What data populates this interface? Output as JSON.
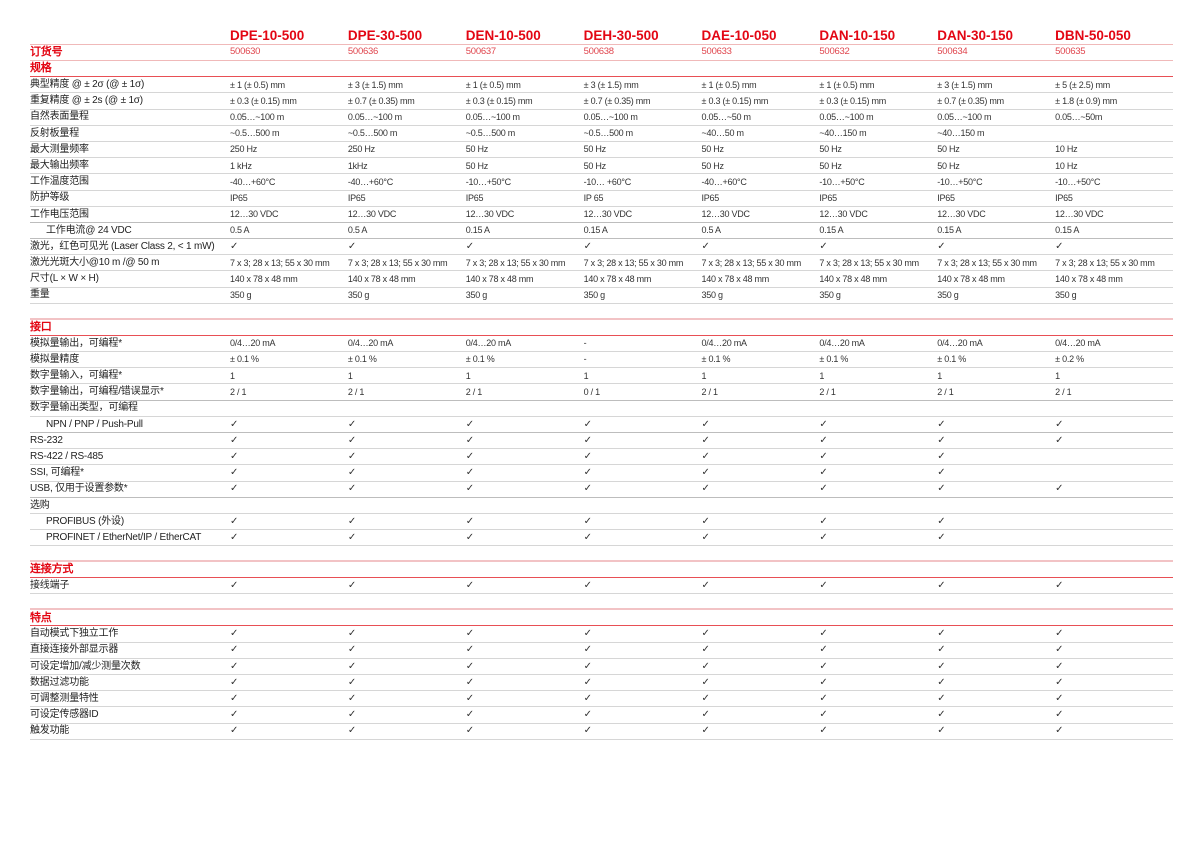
{
  "products": [
    "DPE-10-500",
    "DPE-30-500",
    "DEN-10-500",
    "DEH-30-500",
    "DAE-10-050",
    "DAN-10-150",
    "DAN-30-150",
    "DBN-50-050"
  ],
  "order_label": "订货号",
  "order_numbers": [
    "500630",
    "500636",
    "500637",
    "500638",
    "500633",
    "500632",
    "500634",
    "500635"
  ],
  "accent_color": "#e30613",
  "sections": [
    {
      "title": "规格",
      "rows": [
        {
          "label": "典型精度 @ ± 2σ (@ ± 1σ)",
          "values": [
            "± 1 (± 0.5) mm",
            "± 3 (± 1.5) mm",
            "± 1 (± 0.5) mm",
            "± 3 (± 1.5) mm",
            "± 1 (± 0.5) mm",
            "± 1 (± 0.5) mm",
            "± 3 (± 1.5) mm",
            "± 5 (± 2.5) mm"
          ]
        },
        {
          "label": "重复精度 @ ± 2s (@ ± 1σ)",
          "values": [
            "± 0.3 (± 0.15) mm",
            "± 0.7 (± 0.35) mm",
            "± 0.3 (± 0.15) mm",
            "± 0.7 (± 0.35) mm",
            "± 0.3 (± 0.15) mm",
            "± 0.3 (± 0.15) mm",
            "± 0.7 (± 0.35) mm",
            "± 1.8 (± 0.9) mm"
          ]
        },
        {
          "label": "自然表面量程",
          "values": [
            "0.05…~100 m",
            "0.05…~100 m",
            "0.05…~100 m",
            "0.05…~100 m",
            "0.05…~50 m",
            "0.05…~100 m",
            "0.05…~100 m",
            "0.05…~50m"
          ]
        },
        {
          "label": "反射板量程",
          "values": [
            " ~0.5…500 m",
            " ~0.5…500 m",
            " ~0.5…500 m",
            " ~0.5…500 m",
            "~40…50 m",
            "~40…150 m",
            "~40…150 m",
            ""
          ]
        },
        {
          "label": "最大测量频率",
          "values": [
            "250 Hz",
            "250 Hz",
            "50 Hz",
            "50 Hz",
            "50 Hz",
            "50 Hz",
            "50 Hz",
            "10 Hz"
          ]
        },
        {
          "label": "最大输出频率",
          "values": [
            "1 kHz",
            "1kHz",
            "50 Hz",
            "50 Hz",
            "50 Hz",
            "50 Hz",
            "50 Hz",
            "10 Hz"
          ]
        },
        {
          "label": "工作温度范围",
          "values": [
            "-40…+60°C",
            "-40…+60°C",
            "-10…+50°C",
            "-10… +60°C",
            "-40…+60°C",
            "-10…+50°C",
            "-10…+50°C",
            "-10…+50°C"
          ]
        },
        {
          "label": "防护等级",
          "values": [
            "IP65",
            "IP65",
            "IP65",
            "IP 65",
            "IP65",
            "IP65",
            "IP65",
            "IP65"
          ]
        },
        {
          "label": "工作电压范围",
          "thick": true,
          "values": [
            "12…30 VDC",
            "12…30 VDC",
            "12…30 VDC",
            "12…30 VDC",
            "12…30 VDC",
            "12…30 VDC",
            "12…30 VDC",
            "12…30 VDC"
          ]
        },
        {
          "label": "工作电流@ 24 VDC",
          "indent": true,
          "thick": true,
          "values": [
            "0.5 A",
            "0.5 A",
            "0.15 A",
            "0.15 A",
            "0.5 A",
            "0.15 A",
            "0.15 A",
            "0.15 A"
          ]
        },
        {
          "label": "激光，红色可见光 (Laser Class 2, < 1 mW)",
          "values": [
            "✓",
            "✓",
            "✓",
            "✓",
            "✓",
            "✓",
            "✓",
            "✓"
          ]
        },
        {
          "label": "激光光斑大小@10 m /@ 50 m",
          "values": [
            "7 x 3; 28 x 13; 55 x 30 mm",
            "7 x 3; 28 x 13; 55 x 30 mm",
            "7 x 3; 28 x 13; 55 x 30 mm",
            "7 x 3; 28 x 13; 55 x 30 mm",
            "7 x 3; 28 x 13; 55 x 30 mm",
            "7 x 3; 28 x 13; 55 x 30 mm",
            "7 x 3; 28 x 13; 55 x 30 mm",
            "7 x 3; 28 x 13; 55 x 30 mm"
          ]
        },
        {
          "label": "尺寸(L × W × H)",
          "values": [
            "140 x 78 x 48 mm",
            "140 x 78 x 48 mm",
            "140 x 78 x 48 mm",
            "140 x 78 x 48 mm",
            "140 x 78 x 48 mm",
            "140 x 78 x 48 mm",
            "140 x 78 x 48 mm",
            "140 x 78 x 48 mm"
          ]
        },
        {
          "label": "重量",
          "values": [
            "350 g",
            "350 g",
            "350 g",
            "350 g",
            "350 g",
            "350 g",
            "350 g",
            "350 g"
          ]
        }
      ]
    },
    {
      "title": "接口",
      "rows": [
        {
          "label": "模拟量输出，可编程*",
          "values": [
            "0/4…20 mA",
            "0/4…20 mA",
            "0/4…20 mA",
            "-",
            "0/4…20 mA",
            "0/4…20 mA",
            "0/4…20 mA",
            "0/4…20 mA"
          ]
        },
        {
          "label": "模拟量精度",
          "values": [
            "± 0.1 %",
            "± 0.1 %",
            "± 0.1 %",
            "-",
            "± 0.1 %",
            "± 0.1 %",
            "± 0.1 %",
            "± 0.2 %"
          ]
        },
        {
          "label": "数字量输入，可编程*",
          "values": [
            "1",
            "1",
            "1",
            "1",
            "1",
            "1",
            "1",
            "1"
          ]
        },
        {
          "label": "数字量输出，可编程/错误显示*",
          "thick": true,
          "values": [
            "2 / 1",
            "2 / 1",
            "2 / 1",
            "0 / 1",
            "2 / 1",
            "2 / 1",
            "2 / 1",
            "2 / 1"
          ]
        },
        {
          "label": "数字量输出类型，可编程",
          "values": [
            "",
            "",
            "",
            "",
            "",
            "",
            "",
            ""
          ]
        },
        {
          "label": "NPN / PNP / Push-Pull",
          "indent": true,
          "thick": true,
          "values": [
            "✓",
            "✓",
            "✓",
            "✓",
            "✓",
            "✓",
            "✓",
            "✓"
          ]
        },
        {
          "label": "RS-232",
          "values": [
            "✓",
            "✓",
            "✓",
            "✓",
            "✓",
            "✓",
            "✓",
            "✓"
          ]
        },
        {
          "label": "RS-422 / RS-485",
          "values": [
            "✓",
            "✓",
            "✓",
            "✓",
            "✓",
            "✓",
            "✓",
            ""
          ]
        },
        {
          "label": "SSI, 可编程*",
          "values": [
            "✓",
            "✓",
            "✓",
            "✓",
            "✓",
            "✓",
            "✓",
            ""
          ]
        },
        {
          "label": "USB, 仅用于设置参数*",
          "thick": true,
          "values": [
            "✓",
            "✓",
            "✓",
            "✓",
            "✓",
            "✓",
            "✓",
            "✓"
          ]
        },
        {
          "label": "选购",
          "values": [
            "",
            "",
            "",
            "",
            "",
            "",
            "",
            ""
          ]
        },
        {
          "label": "PROFIBUS (外设)",
          "indent": true,
          "values": [
            "✓",
            "✓",
            "✓",
            "✓",
            "✓",
            "✓",
            "✓",
            ""
          ]
        },
        {
          "label": "PROFINET / EtherNet/IP / EtherCAT",
          "indent": true,
          "values": [
            "✓",
            "✓",
            "✓",
            "✓",
            "✓",
            "✓",
            "✓",
            ""
          ]
        }
      ]
    },
    {
      "title": "连接方式",
      "rows": [
        {
          "label": "接线端子",
          "values": [
            "✓",
            "✓",
            "✓",
            "✓",
            "✓",
            "✓",
            "✓",
            "✓"
          ]
        }
      ]
    },
    {
      "title": "特点",
      "rows": [
        {
          "label": "自动模式下独立工作",
          "values": [
            "✓",
            "✓",
            "✓",
            "✓",
            "✓",
            "✓",
            "✓",
            "✓"
          ]
        },
        {
          "label": "直接连接外部显示器",
          "values": [
            "✓",
            "✓",
            "✓",
            "✓",
            "✓",
            "✓",
            "✓",
            "✓"
          ]
        },
        {
          "label": "可设定增加/减少测量次数",
          "values": [
            "✓",
            "✓",
            "✓",
            "✓",
            "✓",
            "✓",
            "✓",
            "✓"
          ]
        },
        {
          "label": "数据过滤功能",
          "values": [
            "✓",
            "✓",
            "✓",
            "✓",
            "✓",
            "✓",
            "✓",
            "✓"
          ]
        },
        {
          "label": "可调整测量特性",
          "values": [
            "✓",
            "✓",
            "✓",
            "✓",
            "✓",
            "✓",
            "✓",
            "✓"
          ]
        },
        {
          "label": "可设定传感器ID",
          "values": [
            "✓",
            "✓",
            "✓",
            "✓",
            "✓",
            "✓",
            "✓",
            "✓"
          ]
        },
        {
          "label": "触发功能",
          "values": [
            "✓",
            "✓",
            "✓",
            "✓",
            "✓",
            "✓",
            "✓",
            "✓"
          ]
        }
      ]
    }
  ]
}
